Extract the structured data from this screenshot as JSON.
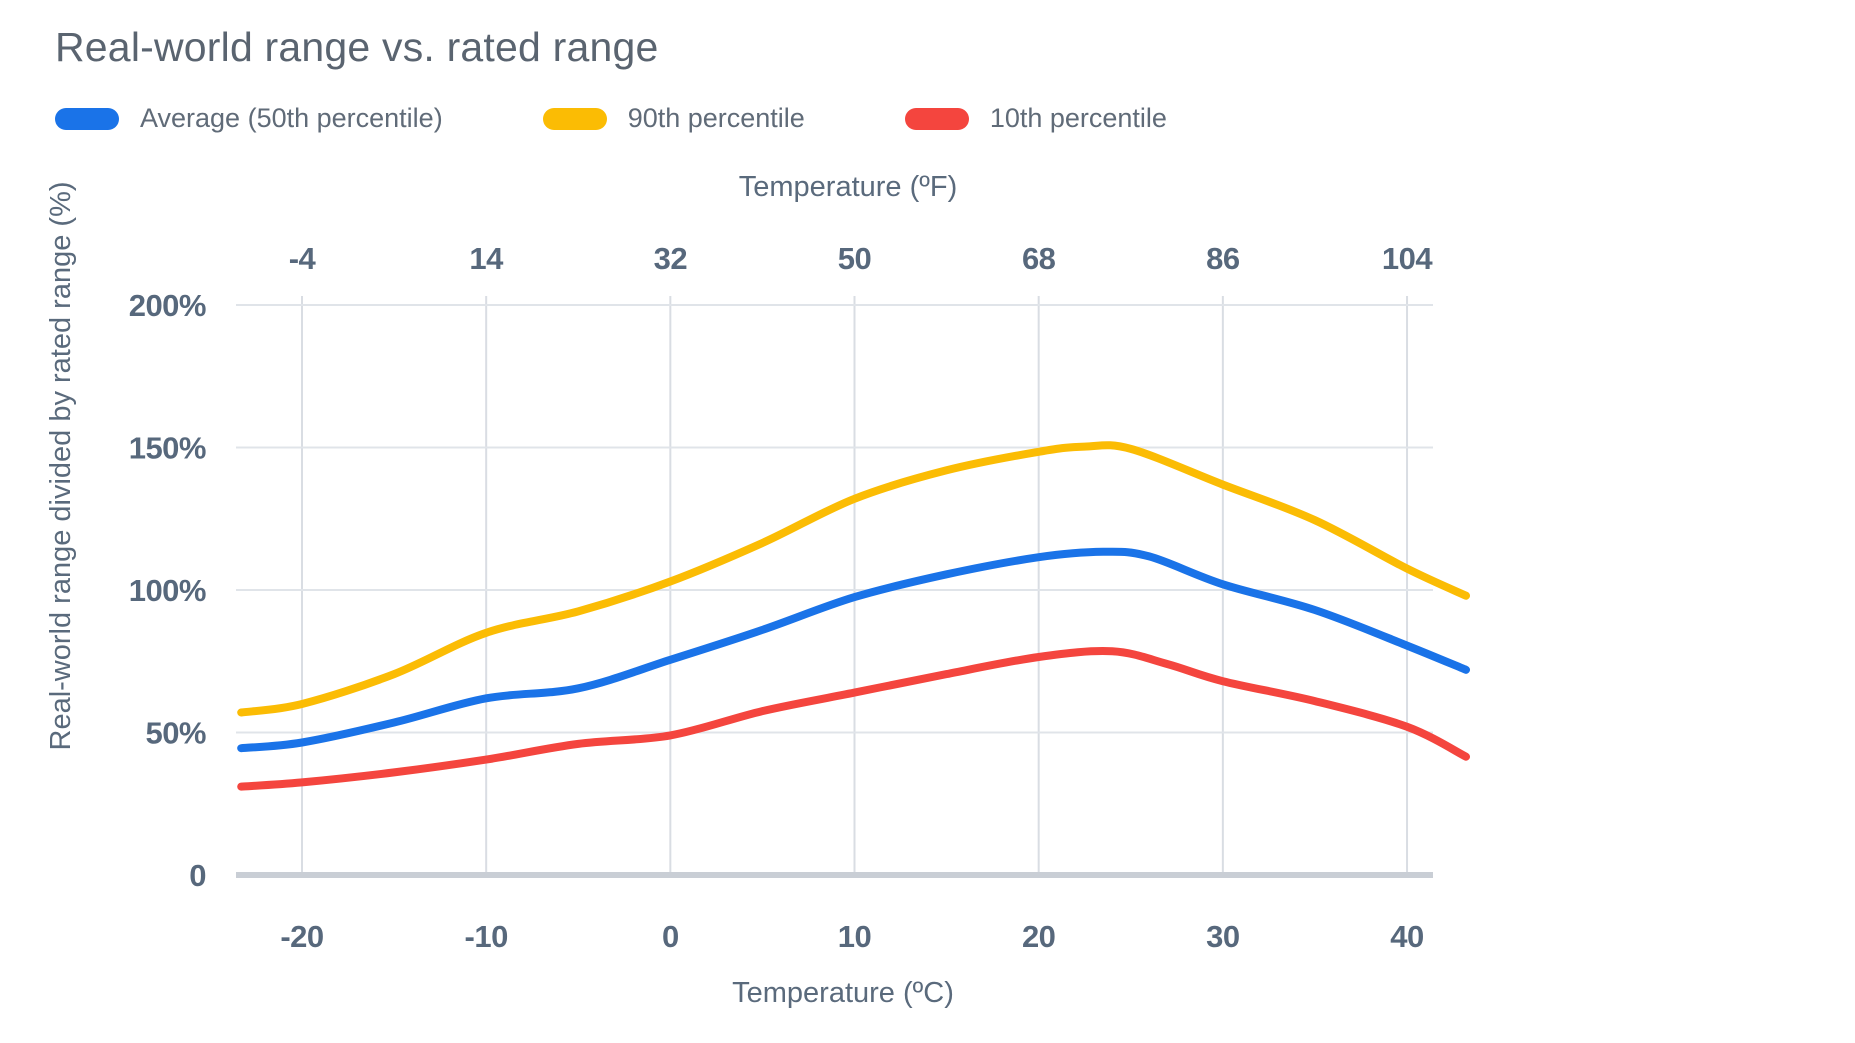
{
  "page": {
    "title": "Real-world range vs. rated range"
  },
  "chart_data": {
    "type": "line",
    "title": "Real-world range vs. rated range",
    "xlabel": "Temperature (ºC)",
    "x2label": "Temperature (ºF)",
    "ylabel": "Real-world range divided by rated range (%)",
    "x_ticks_celsius": [
      -20,
      -10,
      0,
      10,
      20,
      30,
      40
    ],
    "x_tick_labels_celsius": [
      "-20",
      "-10",
      "0",
      "10",
      "20",
      "30",
      "40"
    ],
    "x_tick_labels_fahrenheit": [
      "-4",
      "14",
      "32",
      "50",
      "68",
      "86",
      "104"
    ],
    "y_ticks": [
      {
        "value": 0,
        "label": "0"
      },
      {
        "value": 50,
        "label": "50%"
      },
      {
        "value": 100,
        "label": "100%"
      },
      {
        "value": 150,
        "label": "150%"
      },
      {
        "value": 200,
        "label": "200%"
      }
    ],
    "xlim": [
      -23.3,
      43.2
    ],
    "ylim": [
      0,
      200
    ],
    "grid": true,
    "legend_position": "top-left",
    "gridline_color": "#e0e4e9",
    "vertical_gridline_color": "#d9dde3",
    "baseline_color": "#c9ced5",
    "series": [
      {
        "name": "Average (50th percentile)",
        "color": "#1a73e8",
        "points": [
          [
            -23.3,
            44.5
          ],
          [
            -20,
            46.5
          ],
          [
            -15,
            53.5
          ],
          [
            -10,
            62
          ],
          [
            -5,
            65.5
          ],
          [
            0,
            75.5
          ],
          [
            5,
            86
          ],
          [
            10,
            97.5
          ],
          [
            15,
            105.5
          ],
          [
            20,
            111.5
          ],
          [
            23.5,
            113.4
          ],
          [
            26,
            111.8
          ],
          [
            30,
            102
          ],
          [
            35,
            93
          ],
          [
            40,
            80.5
          ],
          [
            43.2,
            72
          ]
        ]
      },
      {
        "name": "90th percentile",
        "color": "#fbbc04",
        "points": [
          [
            -23.3,
            57
          ],
          [
            -20,
            60
          ],
          [
            -15,
            70.5
          ],
          [
            -10,
            85
          ],
          [
            -5,
            92.5
          ],
          [
            0,
            103
          ],
          [
            5,
            116.5
          ],
          [
            10,
            132
          ],
          [
            15,
            142
          ],
          [
            20,
            148.5
          ],
          [
            22.5,
            150.3
          ],
          [
            25,
            149.5
          ],
          [
            30,
            137
          ],
          [
            35,
            124.5
          ],
          [
            40,
            107.5
          ],
          [
            43.2,
            98
          ]
        ]
      },
      {
        "name": "10th percentile",
        "color": "#f4453e",
        "points": [
          [
            -23.3,
            31
          ],
          [
            -20,
            32.5
          ],
          [
            -15,
            36
          ],
          [
            -10,
            40.5
          ],
          [
            -5,
            46
          ],
          [
            0,
            49
          ],
          [
            5,
            57.5
          ],
          [
            10,
            64
          ],
          [
            15,
            70.5
          ],
          [
            20,
            76.5
          ],
          [
            24,
            78.5
          ],
          [
            27,
            74
          ],
          [
            30,
            68
          ],
          [
            35,
            61
          ],
          [
            40,
            52
          ],
          [
            43.2,
            41.5
          ]
        ]
      }
    ]
  }
}
